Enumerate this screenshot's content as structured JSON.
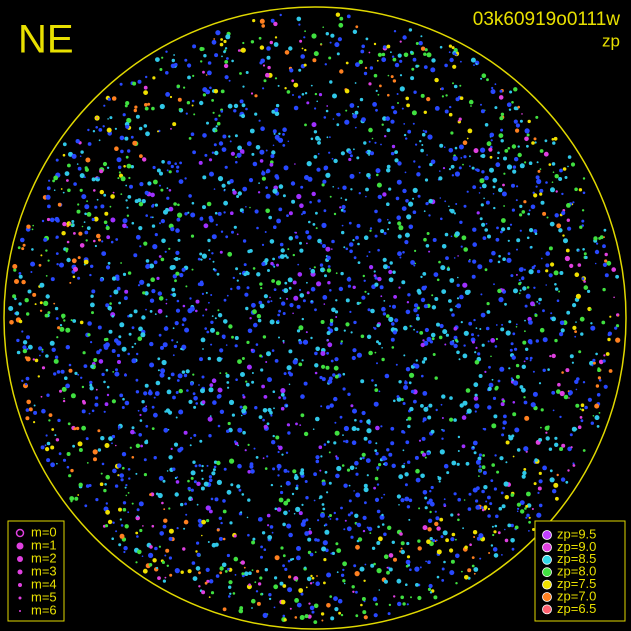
{
  "corner_label": "NE",
  "image_id": "03k60919o0111w",
  "mode": "zp",
  "magnitude_legend": [
    "m=0",
    "m=1",
    "m=2",
    "m=3",
    "m=4",
    "m=5",
    "m=6"
  ],
  "zp_legend": [
    {
      "label": "zp=9.5",
      "color": "#c040ff"
    },
    {
      "label": "zp=9.0",
      "color": "#e040e0"
    },
    {
      "label": "zp=8.5",
      "color": "#30d8e8"
    },
    {
      "label": "zp=8.0",
      "color": "#40e040"
    },
    {
      "label": "zp=7.5",
      "color": "#f0e000"
    },
    {
      "label": "zp=7.0",
      "color": "#ff8020"
    },
    {
      "label": "zp=6.5",
      "color": "#ff6070"
    }
  ]
}
